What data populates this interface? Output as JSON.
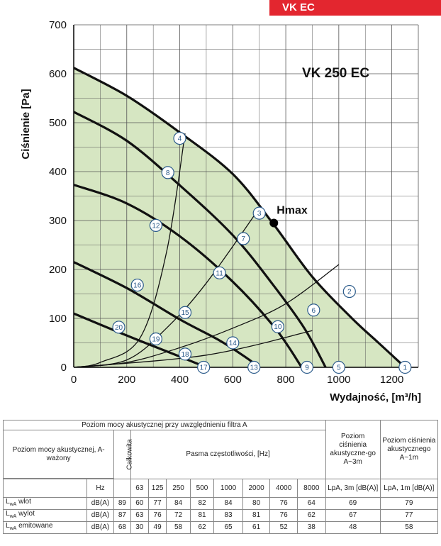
{
  "badge": "VK EC",
  "chart_data": {
    "type": "line",
    "title": "VK 250 EC",
    "xlabel": "Wydajność, [m³/h]",
    "ylabel": "Ciśnienie [Pa]",
    "xlim": [
      0,
      1300
    ],
    "ylim": [
      0,
      700
    ],
    "x_ticks": [
      0,
      200,
      400,
      600,
      800,
      1000,
      1200
    ],
    "y_ticks": [
      0,
      100,
      200,
      300,
      400,
      500,
      600,
      700
    ],
    "grid": true,
    "colors": {
      "fill": "#d6e6c2",
      "curve": "#111111",
      "marker_stroke": "#2a5a8a",
      "eta_dot": "#000000"
    },
    "fan_curves": [
      {
        "points": [
          [
            0,
            612
          ],
          [
            200,
            555
          ],
          [
            400,
            480
          ],
          [
            600,
            395
          ],
          [
            750,
            295
          ],
          [
            900,
            185
          ],
          [
            1050,
            100
          ],
          [
            1150,
            50
          ],
          [
            1250,
            0
          ]
        ]
      },
      {
        "points": [
          [
            0,
            522
          ],
          [
            200,
            463
          ],
          [
            400,
            372
          ],
          [
            600,
            270
          ],
          [
            750,
            170
          ],
          [
            870,
            80
          ],
          [
            950,
            0
          ]
        ]
      },
      {
        "points": [
          [
            0,
            373
          ],
          [
            200,
            335
          ],
          [
            400,
            268
          ],
          [
            600,
            175
          ],
          [
            760,
            80
          ],
          [
            860,
            0
          ]
        ]
      },
      {
        "points": [
          [
            0,
            215
          ],
          [
            200,
            162
          ],
          [
            400,
            98
          ],
          [
            550,
            55
          ],
          [
            650,
            20
          ],
          [
            700,
            0
          ]
        ]
      },
      {
        "points": [
          [
            0,
            110
          ],
          [
            200,
            65
          ],
          [
            400,
            22
          ],
          [
            500,
            0
          ]
        ]
      }
    ],
    "system_curves": [
      {
        "points": [
          [
            0,
            0
          ],
          [
            100,
            10
          ],
          [
            250,
            60
          ],
          [
            350,
            235
          ],
          [
            420,
            478
          ]
        ]
      },
      {
        "points": [
          [
            0,
            0
          ],
          [
            200,
            15
          ],
          [
            350,
            80
          ],
          [
            500,
            172
          ],
          [
            700,
            325
          ]
        ]
      },
      {
        "points": [
          [
            0,
            0
          ],
          [
            200,
            10
          ],
          [
            400,
            40
          ],
          [
            600,
            80
          ],
          [
            800,
            130
          ],
          [
            1000,
            210
          ]
        ]
      },
      {
        "points": [
          [
            0,
            0
          ],
          [
            500,
            25
          ],
          [
            900,
            75
          ]
        ]
      }
    ],
    "eta_max": {
      "label": "Ηmax",
      "x": 755,
      "y": 295
    },
    "markers": [
      {
        "label": "1",
        "x": 1250,
        "y": 0
      },
      {
        "label": "2",
        "x": 1040,
        "y": 155
      },
      {
        "label": "3",
        "x": 700,
        "y": 315
      },
      {
        "label": "4",
        "x": 400,
        "y": 468
      },
      {
        "label": "5",
        "x": 1000,
        "y": 0
      },
      {
        "label": "6",
        "x": 905,
        "y": 117
      },
      {
        "label": "7",
        "x": 640,
        "y": 263
      },
      {
        "label": "8",
        "x": 355,
        "y": 398
      },
      {
        "label": "9",
        "x": 880,
        "y": 0
      },
      {
        "label": "10",
        "x": 770,
        "y": 83
      },
      {
        "label": "11",
        "x": 550,
        "y": 193
      },
      {
        "label": "12",
        "x": 310,
        "y": 290
      },
      {
        "label": "13",
        "x": 680,
        "y": 0
      },
      {
        "label": "14",
        "x": 600,
        "y": 50
      },
      {
        "label": "15",
        "x": 420,
        "y": 112
      },
      {
        "label": "16",
        "x": 240,
        "y": 168
      },
      {
        "label": "17",
        "x": 490,
        "y": 0
      },
      {
        "label": "18",
        "x": 420,
        "y": 27
      },
      {
        "label": "19",
        "x": 310,
        "y": 58
      },
      {
        "label": "20",
        "x": 170,
        "y": 82
      }
    ]
  },
  "table": {
    "caption": "Poziom mocy akustycznej przy uwzględnieniu filtra A",
    "row_header": "Poziom mocy akustycznej, A-ważony",
    "total_label": "Całkowita",
    "bands_label": "Pasma częstotliwości, [Hz]",
    "lpa3_header": "Poziom ciśnienia akustyczne-go A~3m",
    "lpa1_header": "Poziom ciśnienia akustycznego A~1m",
    "hz_label": "Hz",
    "bands": [
      "63",
      "125",
      "250",
      "500",
      "1000",
      "2000",
      "4000",
      "8000"
    ],
    "lpa3_unit": "LpA, 3m [dB(A)]",
    "lpa1_unit": "LpA, 1m [dB(A)]",
    "rows": [
      {
        "name": "wlot",
        "unit": "dB(A)",
        "total": "89",
        "bands": [
          "60",
          "77",
          "84",
          "82",
          "84",
          "80",
          "76",
          "64"
        ],
        "lpa3": "69",
        "lpa1": "79"
      },
      {
        "name": "wylot",
        "unit": "dB(A)",
        "total": "87",
        "bands": [
          "63",
          "76",
          "72",
          "81",
          "83",
          "81",
          "76",
          "62"
        ],
        "lpa3": "67",
        "lpa1": "77"
      },
      {
        "name": "emitowane",
        "unit": "dB(A)",
        "total": "68",
        "bands": [
          "30",
          "49",
          "58",
          "62",
          "65",
          "61",
          "52",
          "38"
        ],
        "lpa3": "48",
        "lpa1": "58"
      }
    ]
  }
}
